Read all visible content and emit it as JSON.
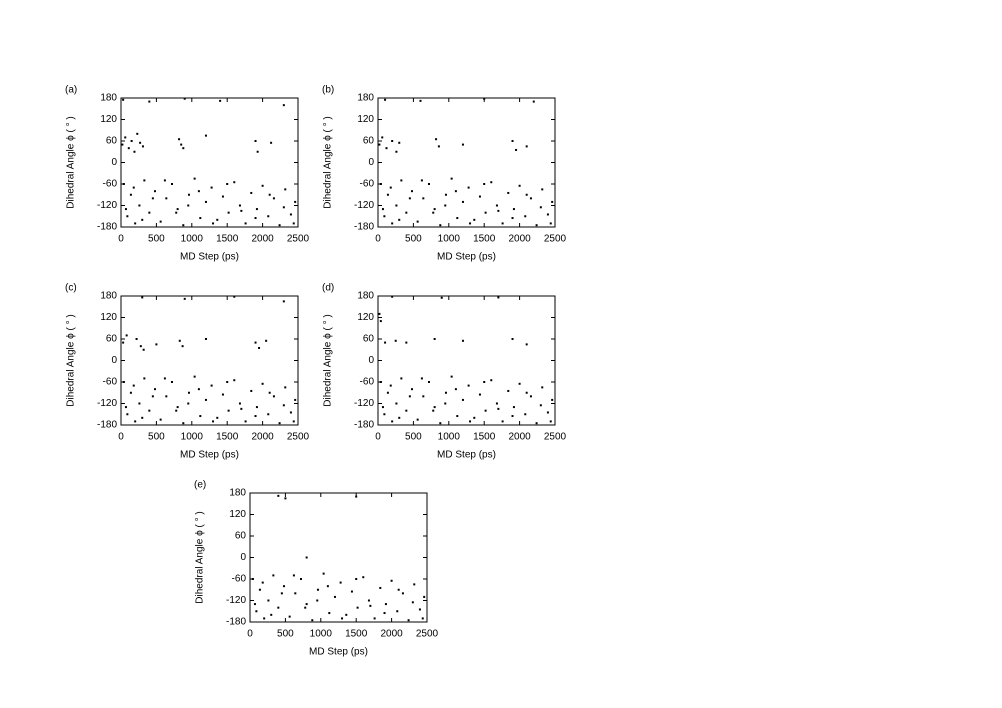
{
  "chart_data": [
    {
      "type": "scatter",
      "title": "(a)",
      "x_label": "MD Step (ps)",
      "y_label": "Dihedral Angle ϕ ( ° )",
      "xlim": [
        0,
        2500
      ],
      "ylim": [
        -180,
        180
      ],
      "xticks": [
        0,
        500,
        1000,
        1500,
        2000,
        2500
      ],
      "yticks": [
        -180,
        -120,
        -60,
        0,
        60,
        120,
        180
      ],
      "color": "#000000",
      "x": [
        20,
        60,
        110,
        150,
        190,
        230,
        270,
        310,
        820,
        850,
        880,
        1200,
        1900,
        1930,
        2120,
        40,
        90,
        140,
        200,
        260,
        330,
        400,
        480,
        560,
        640,
        720,
        800,
        880,
        960,
        1040,
        1120,
        1200,
        1280,
        1360,
        1440,
        1520,
        1600,
        1680,
        1760,
        1840,
        1920,
        2000,
        2080,
        2160,
        2240,
        2320,
        2400,
        2460,
        70,
        180,
        300,
        450,
        620,
        780,
        950,
        1100,
        1300,
        1500,
        1700,
        1900,
        2100,
        2300,
        2440,
        30,
        400,
        900,
        1400,
        2300
      ],
      "values": [
        50,
        70,
        40,
        60,
        30,
        80,
        55,
        45,
        65,
        50,
        40,
        75,
        60,
        30,
        55,
        -60,
        -150,
        -90,
        -170,
        -120,
        -50,
        -140,
        -80,
        -165,
        -100,
        -60,
        -130,
        -175,
        -90,
        -45,
        -155,
        -110,
        -70,
        -160,
        -95,
        -140,
        -55,
        -120,
        -170,
        -85,
        -130,
        -65,
        -150,
        -100,
        -175,
        -75,
        -145,
        -110,
        -130,
        -70,
        -160,
        -100,
        -50,
        -140,
        -120,
        -80,
        -170,
        -60,
        -135,
        -155,
        -90,
        -125,
        -170,
        175,
        170,
        178,
        172,
        160
      ]
    },
    {
      "type": "scatter",
      "title": "(b)",
      "x_label": "MD Step (ps)",
      "y_label": "Dihedral Angle ϕ ( ° )",
      "xlim": [
        0,
        2500
      ],
      "ylim": [
        -180,
        180
      ],
      "xticks": [
        0,
        500,
        1000,
        1500,
        2000,
        2500
      ],
      "yticks": [
        -180,
        -120,
        -60,
        0,
        60,
        120,
        180
      ],
      "color": "#000000",
      "x": [
        20,
        60,
        120,
        200,
        260,
        300,
        820,
        860,
        1200,
        1900,
        1950,
        2100,
        100,
        600,
        1500,
        2200,
        40,
        90,
        140,
        200,
        260,
        330,
        400,
        480,
        560,
        640,
        720,
        800,
        880,
        960,
        1040,
        1120,
        1200,
        1280,
        1360,
        1440,
        1520,
        1600,
        1680,
        1760,
        1840,
        1920,
        2000,
        2080,
        2160,
        2240,
        2320,
        2400,
        2460,
        70,
        180,
        300,
        450,
        620,
        780,
        950,
        1100,
        1300,
        1500,
        1700,
        1900,
        2100,
        2300,
        2440
      ],
      "values": [
        50,
        70,
        40,
        60,
        30,
        55,
        65,
        45,
        50,
        60,
        35,
        45,
        175,
        172,
        178,
        170,
        -60,
        -150,
        -90,
        -170,
        -120,
        -50,
        -140,
        -80,
        -165,
        -100,
        -60,
        -130,
        -175,
        -90,
        -45,
        -155,
        -110,
        -70,
        -160,
        -95,
        -140,
        -55,
        -120,
        -170,
        -85,
        -130,
        -65,
        -150,
        -100,
        -175,
        -75,
        -145,
        -110,
        -130,
        -70,
        -160,
        -100,
        -50,
        -140,
        -120,
        -80,
        -170,
        -60,
        -135,
        -155,
        -90,
        -125,
        -170
      ]
    },
    {
      "type": "scatter",
      "title": "(c)",
      "x_label": "MD Step (ps)",
      "y_label": "Dihedral Angle ϕ ( ° )",
      "xlim": [
        0,
        2500
      ],
      "ylim": [
        -180,
        180
      ],
      "xticks": [
        0,
        500,
        1000,
        1500,
        2000,
        2500
      ],
      "yticks": [
        -180,
        -120,
        -60,
        0,
        60,
        120,
        180
      ],
      "color": "#000000",
      "x": [
        30,
        80,
        220,
        280,
        320,
        500,
        830,
        870,
        1200,
        1900,
        1950,
        2050,
        300,
        900,
        1600,
        2300,
        40,
        90,
        140,
        200,
        260,
        330,
        400,
        480,
        560,
        640,
        720,
        800,
        880,
        960,
        1040,
        1120,
        1200,
        1280,
        1360,
        1440,
        1520,
        1600,
        1680,
        1760,
        1840,
        1920,
        2000,
        2080,
        2160,
        2240,
        2320,
        2400,
        2460,
        70,
        180,
        300,
        450,
        620,
        780,
        950,
        1100,
        1300,
        1500,
        1700,
        1900,
        2100,
        2300,
        2440
      ],
      "values": [
        50,
        70,
        60,
        40,
        30,
        45,
        55,
        40,
        60,
        50,
        35,
        55,
        176,
        172,
        178,
        165,
        -60,
        -150,
        -90,
        -170,
        -120,
        -50,
        -140,
        -80,
        -165,
        -100,
        -60,
        -130,
        -175,
        -90,
        -45,
        -155,
        -110,
        -70,
        -160,
        -95,
        -140,
        -55,
        -120,
        -170,
        -85,
        -130,
        -65,
        -150,
        -100,
        -175,
        -75,
        -145,
        -110,
        -130,
        -70,
        -160,
        -100,
        -50,
        -140,
        -120,
        -80,
        -170,
        -60,
        -135,
        -155,
        -90,
        -125,
        -170
      ]
    },
    {
      "type": "scatter",
      "title": "(d)",
      "x_label": "MD Step (ps)",
      "y_label": "Dihedral Angle ϕ ( ° )",
      "xlim": [
        0,
        2500
      ],
      "ylim": [
        -180,
        180
      ],
      "xticks": [
        0,
        500,
        1000,
        1500,
        2000,
        2500
      ],
      "yticks": [
        -180,
        -120,
        -60,
        0,
        60,
        120,
        180
      ],
      "color": "#000000",
      "x": [
        20,
        40,
        100,
        250,
        400,
        800,
        1200,
        1900,
        2100,
        200,
        900,
        1700,
        40,
        90,
        140,
        200,
        260,
        330,
        400,
        480,
        560,
        640,
        720,
        800,
        880,
        960,
        1040,
        1120,
        1200,
        1280,
        1360,
        1440,
        1520,
        1600,
        1680,
        1760,
        1840,
        1920,
        2000,
        2080,
        2160,
        2240,
        2320,
        2400,
        2460,
        70,
        180,
        300,
        450,
        620,
        780,
        950,
        1100,
        1300,
        1500,
        1700,
        1900,
        2100,
        2300,
        2440
      ],
      "values": [
        130,
        110,
        50,
        55,
        50,
        60,
        55,
        60,
        45,
        178,
        175,
        176,
        -60,
        -150,
        -90,
        -170,
        -120,
        -50,
        -140,
        -80,
        -165,
        -100,
        -60,
        -130,
        -175,
        -90,
        -45,
        -155,
        -110,
        -70,
        -160,
        -95,
        -140,
        -55,
        -120,
        -170,
        -85,
        -130,
        -65,
        -150,
        -100,
        -175,
        -75,
        -145,
        -110,
        -130,
        -70,
        -160,
        -100,
        -50,
        -140,
        -120,
        -80,
        -170,
        -60,
        -135,
        -155,
        -90,
        -125,
        -170
      ]
    },
    {
      "type": "scatter",
      "title": "(e)",
      "x_label": "MD Step (ps)",
      "y_label": "Dihedral Angle ϕ ( ° )",
      "xlim": [
        0,
        2500
      ],
      "ylim": [
        -180,
        180
      ],
      "xticks": [
        0,
        500,
        1000,
        1500,
        2000,
        2500
      ],
      "yticks": [
        -180,
        -120,
        -60,
        0,
        60,
        120,
        180
      ],
      "color": "#000000",
      "x": [
        400,
        500,
        1500,
        800,
        40,
        90,
        140,
        200,
        260,
        330,
        400,
        480,
        560,
        640,
        720,
        800,
        880,
        960,
        1040,
        1120,
        1200,
        1280,
        1360,
        1440,
        1520,
        1600,
        1680,
        1760,
        1840,
        1920,
        2000,
        2080,
        2160,
        2240,
        2320,
        2400,
        2460,
        70,
        180,
        300,
        450,
        620,
        780,
        950,
        1100,
        1300,
        1500,
        1700,
        1900,
        2100,
        2300,
        2440
      ],
      "values": [
        172,
        165,
        170,
        0,
        -60,
        -150,
        -90,
        -170,
        -120,
        -50,
        -140,
        -80,
        -165,
        -100,
        -60,
        -130,
        -175,
        -90,
        -45,
        -155,
        -110,
        -70,
        -160,
        -95,
        -140,
        -55,
        -120,
        -170,
        -85,
        -130,
        -65,
        -150,
        -100,
        -175,
        -75,
        -145,
        -110,
        -130,
        -70,
        -160,
        -100,
        -50,
        -140,
        -120,
        -80,
        -170,
        -60,
        -135,
        -155,
        -90,
        -125,
        -170
      ]
    }
  ]
}
